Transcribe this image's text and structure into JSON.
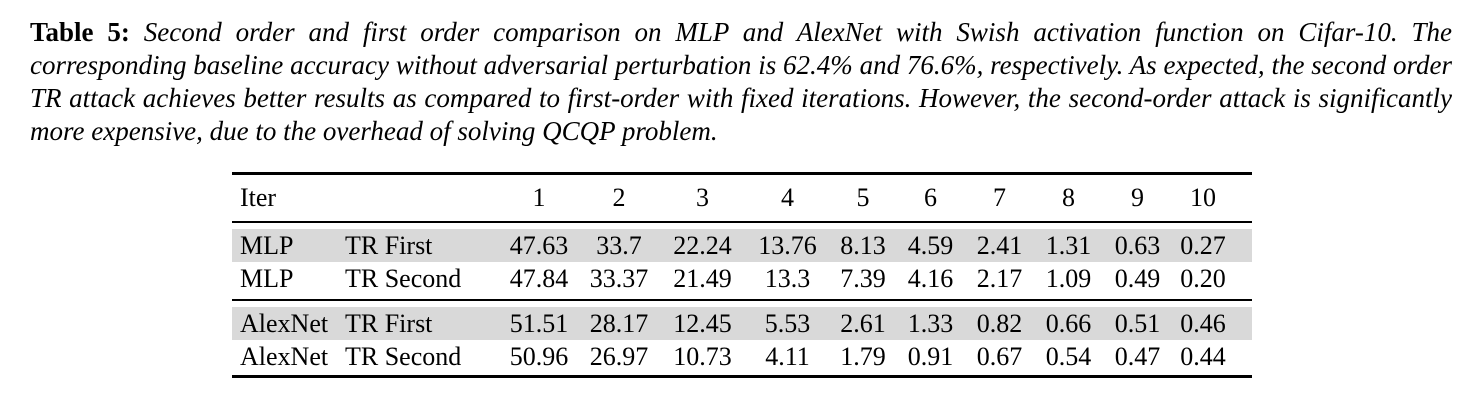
{
  "caption": {
    "label": "Table 5:",
    "text": "Second order and first order comparison on MLP and AlexNet with Swish activation function on Cifar-10. The corresponding baseline accuracy without adversarial perturbation is 62.4% and 76.6%, respectively. As expected, the second order TR attack achieves better results as compared to first-order with fixed iterations. However, the second-order attack is significantly more expensive, due to the overhead of solving QCQP problem."
  },
  "chart_data": {
    "type": "table",
    "title": "Second order and first order comparison on MLP and AlexNet with Swish activation on Cifar-10",
    "header": [
      "Iter",
      "",
      "1",
      "2",
      "3",
      "4",
      "5",
      "6",
      "7",
      "8",
      "9",
      "10"
    ],
    "groups": [
      {
        "rows": [
          {
            "model": "MLP",
            "method": "TR First",
            "shaded": true,
            "values": [
              "47.63",
              "33.7",
              "22.24",
              "13.76",
              "8.13",
              "4.59",
              "2.41",
              "1.31",
              "0.63",
              "0.27"
            ]
          },
          {
            "model": "MLP",
            "method": "TR Second",
            "shaded": false,
            "values": [
              "47.84",
              "33.37",
              "21.49",
              "13.3",
              "7.39",
              "4.16",
              "2.17",
              "1.09",
              "0.49",
              "0.20"
            ]
          }
        ]
      },
      {
        "rows": [
          {
            "model": "AlexNet",
            "method": "TR First",
            "shaded": true,
            "values": [
              "51.51",
              "28.17",
              "12.45",
              "5.53",
              "2.61",
              "1.33",
              "0.82",
              "0.66",
              "0.51",
              "0.46"
            ]
          },
          {
            "model": "AlexNet",
            "method": "TR Second",
            "shaded": false,
            "values": [
              "50.96",
              "26.97",
              "10.73",
              "4.11",
              "1.79",
              "0.91",
              "0.67",
              "0.54",
              "0.47",
              "0.44"
            ]
          }
        ]
      }
    ],
    "colors": {
      "row_shading": "#d9d9d9",
      "rule": "#000000"
    }
  }
}
